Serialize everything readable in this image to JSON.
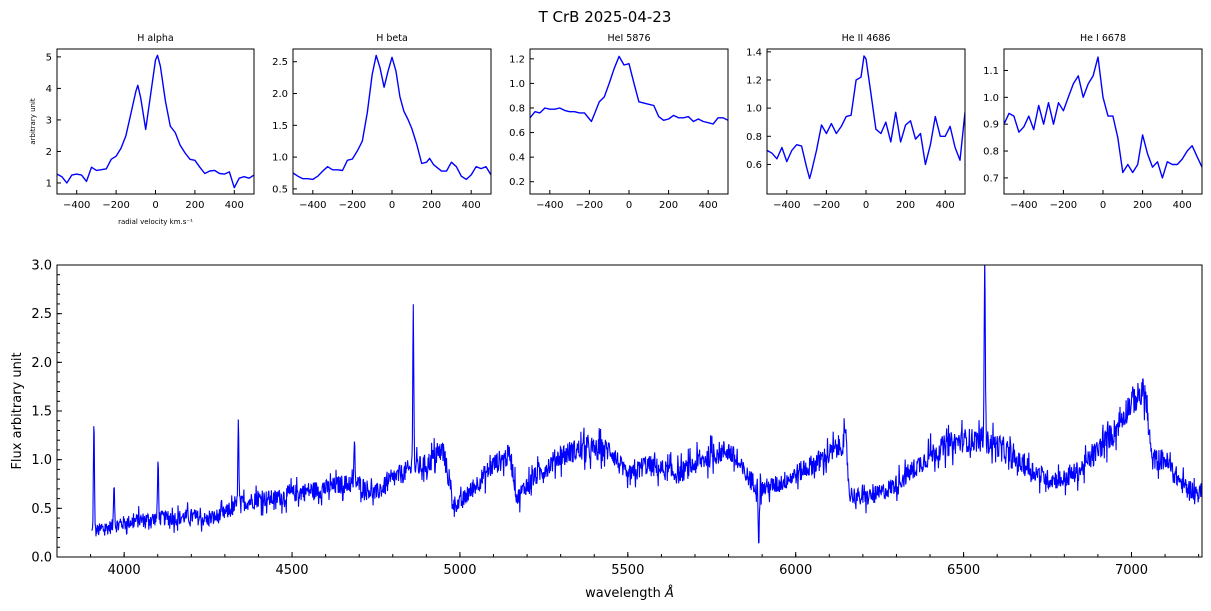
{
  "chart_data": {
    "title": "T CrB    2025-04-23",
    "panels": [
      {
        "type": "line",
        "title": "H alpha",
        "xlabel": "radial velocity km.s⁻¹",
        "ylabel": "arbitrary unit",
        "xlim": [
          -500,
          500
        ],
        "ylim": [
          0.65,
          5.25
        ],
        "xticks": [
          -400,
          -200,
          0,
          200,
          400
        ],
        "yticks": [
          1,
          2,
          3,
          4,
          5
        ],
        "ytick_labels": [
          "1",
          "2",
          "3",
          "4",
          "5"
        ],
        "x": [
          -500,
          -475,
          -450,
          -425,
          -400,
          -375,
          -350,
          -325,
          -300,
          -275,
          -250,
          -225,
          -200,
          -175,
          -150,
          -125,
          -100,
          -90,
          -75,
          -50,
          -25,
          0,
          10,
          25,
          50,
          75,
          100,
          125,
          150,
          175,
          200,
          225,
          250,
          275,
          300,
          325,
          350,
          375,
          400,
          425,
          450,
          475,
          500
        ],
        "y": [
          1.28,
          1.2,
          1.0,
          1.25,
          1.28,
          1.25,
          1.05,
          1.5,
          1.4,
          1.42,
          1.45,
          1.75,
          1.85,
          2.1,
          2.5,
          3.2,
          3.9,
          4.1,
          3.7,
          2.7,
          3.8,
          4.9,
          5.05,
          4.7,
          3.6,
          2.8,
          2.6,
          2.2,
          1.95,
          1.75,
          1.72,
          1.5,
          1.3,
          1.38,
          1.4,
          1.3,
          1.28,
          1.35,
          0.85,
          1.15,
          1.2,
          1.15,
          1.25
        ]
      },
      {
        "type": "line",
        "title": "H beta",
        "xlabel": "",
        "ylabel": "",
        "xlim": [
          -500,
          500
        ],
        "ylim": [
          0.42,
          2.7
        ],
        "xticks": [
          -400,
          -200,
          0,
          200,
          400
        ],
        "yticks": [
          0.5,
          1.0,
          1.5,
          2.0,
          2.5
        ],
        "ytick_labels": [
          "0.5",
          "1.0",
          "1.5",
          "2.0",
          "2.5"
        ],
        "x": [
          -500,
          -475,
          -450,
          -425,
          -400,
          -375,
          -350,
          -325,
          -300,
          -275,
          -250,
          -225,
          -200,
          -175,
          -150,
          -125,
          -100,
          -80,
          -60,
          -40,
          -20,
          0,
          20,
          40,
          60,
          80,
          100,
          125,
          150,
          175,
          190,
          210,
          250,
          275,
          300,
          325,
          350,
          375,
          400,
          425,
          450,
          475,
          500
        ],
        "y": [
          0.75,
          0.7,
          0.66,
          0.66,
          0.65,
          0.7,
          0.78,
          0.85,
          0.8,
          0.8,
          0.79,
          0.95,
          0.97,
          1.1,
          1.25,
          1.7,
          2.3,
          2.6,
          2.4,
          2.1,
          2.35,
          2.57,
          2.35,
          1.95,
          1.72,
          1.6,
          1.45,
          1.2,
          0.9,
          0.92,
          0.98,
          0.88,
          0.78,
          0.78,
          0.92,
          0.85,
          0.7,
          0.65,
          0.72,
          0.85,
          0.82,
          0.85,
          0.72
        ]
      },
      {
        "type": "line",
        "title": "HeI 5876",
        "xlabel": "",
        "ylabel": "",
        "xlim": [
          -500,
          500
        ],
        "ylim": [
          0.1,
          1.28
        ],
        "xticks": [
          -400,
          -200,
          0,
          200,
          400
        ],
        "yticks": [
          0.2,
          0.4,
          0.6,
          0.8,
          1.0,
          1.2
        ],
        "ytick_labels": [
          "0.2",
          "0.4",
          "0.6",
          "0.8",
          "1.0",
          "1.2"
        ],
        "x": [
          -500,
          -475,
          -450,
          -425,
          -400,
          -375,
          -350,
          -325,
          -300,
          -275,
          -250,
          -225,
          -200,
          -190,
          -175,
          -150,
          -125,
          -100,
          -75,
          -50,
          -25,
          0,
          25,
          50,
          75,
          100,
          125,
          150,
          175,
          200,
          225,
          250,
          275,
          300,
          325,
          350,
          375,
          400,
          425,
          450,
          475,
          500
        ],
        "y": [
          0.72,
          0.77,
          0.76,
          0.8,
          0.79,
          0.79,
          0.8,
          0.78,
          0.77,
          0.77,
          0.76,
          0.76,
          0.71,
          0.69,
          0.75,
          0.85,
          0.89,
          1.0,
          1.12,
          1.22,
          1.15,
          1.16,
          1.0,
          0.85,
          0.84,
          0.83,
          0.82,
          0.73,
          0.7,
          0.71,
          0.74,
          0.72,
          0.72,
          0.73,
          0.69,
          0.71,
          0.69,
          0.68,
          0.67,
          0.72,
          0.72,
          0.7
        ]
      },
      {
        "type": "line",
        "title": "He II 4686",
        "xlabel": "",
        "ylabel": "",
        "xlim": [
          -500,
          500
        ],
        "ylim": [
          0.39,
          1.42
        ],
        "xticks": [
          -400,
          -200,
          0,
          200,
          400
        ],
        "yticks": [
          0.6,
          0.8,
          1.0,
          1.2,
          1.4
        ],
        "ytick_labels": [
          "0.6",
          "0.8",
          "1.0",
          "1.2",
          "1.4"
        ],
        "x": [
          -500,
          -475,
          -450,
          -425,
          -400,
          -375,
          -350,
          -325,
          -300,
          -285,
          -275,
          -250,
          -225,
          -200,
          -175,
          -150,
          -125,
          -100,
          -75,
          -50,
          -25,
          -10,
          0,
          25,
          50,
          75,
          100,
          125,
          150,
          175,
          200,
          225,
          250,
          275,
          300,
          325,
          350,
          375,
          400,
          425,
          450,
          475,
          500
        ],
        "y": [
          0.7,
          0.68,
          0.64,
          0.72,
          0.62,
          0.7,
          0.74,
          0.73,
          0.58,
          0.5,
          0.55,
          0.7,
          0.88,
          0.82,
          0.89,
          0.82,
          0.87,
          0.94,
          0.95,
          1.2,
          1.22,
          1.37,
          1.35,
          1.1,
          0.85,
          0.82,
          0.9,
          0.76,
          0.97,
          0.76,
          0.88,
          0.91,
          0.78,
          0.82,
          0.6,
          0.74,
          0.94,
          0.8,
          0.8,
          0.87,
          0.72,
          0.63,
          0.97
        ]
      },
      {
        "type": "line",
        "title": "He I 6678",
        "xlabel": "",
        "ylabel": "",
        "xlim": [
          -500,
          500
        ],
        "ylim": [
          0.64,
          1.18
        ],
        "xticks": [
          -400,
          -200,
          0,
          200,
          400
        ],
        "yticks": [
          0.7,
          0.8,
          0.9,
          1.0,
          1.1
        ],
        "ytick_labels": [
          "0.7",
          "0.8",
          "0.9",
          "1.0",
          "1.1"
        ],
        "x": [
          -500,
          -475,
          -450,
          -425,
          -400,
          -375,
          -350,
          -325,
          -300,
          -275,
          -250,
          -225,
          -200,
          -175,
          -150,
          -125,
          -100,
          -75,
          -50,
          -25,
          0,
          25,
          50,
          75,
          100,
          125,
          150,
          175,
          200,
          225,
          250,
          275,
          300,
          325,
          350,
          375,
          400,
          425,
          450,
          475,
          500
        ],
        "y": [
          0.9,
          0.94,
          0.93,
          0.87,
          0.89,
          0.93,
          0.88,
          0.97,
          0.9,
          0.98,
          0.9,
          0.98,
          0.95,
          1.0,
          1.05,
          1.08,
          1.0,
          1.05,
          1.08,
          1.15,
          1.0,
          0.93,
          0.93,
          0.85,
          0.72,
          0.75,
          0.72,
          0.75,
          0.86,
          0.79,
          0.74,
          0.76,
          0.7,
          0.76,
          0.75,
          0.75,
          0.77,
          0.8,
          0.82,
          0.78,
          0.74
        ]
      }
    ],
    "main": {
      "type": "line",
      "xlabel": "wavelength",
      "xlabel_unit": "Å",
      "ylabel": "Flux  arbitrary unit",
      "xlim": [
        3800,
        7210
      ],
      "ylim": [
        0,
        3
      ],
      "xticks": [
        4000,
        4500,
        5000,
        5500,
        6000,
        6500,
        7000
      ],
      "yticks": [
        0.0,
        0.5,
        1.0,
        1.5,
        2.0,
        2.5,
        3.0
      ],
      "ytick_labels": [
        "0.0",
        "0.5",
        "1.0",
        "1.5",
        "2.0",
        "2.5",
        "3.0"
      ],
      "continuum_x": [
        3900,
        3950,
        4000,
        4050,
        4100,
        4150,
        4200,
        4250,
        4300,
        4350,
        4400,
        4450,
        4500,
        4550,
        4600,
        4650,
        4700,
        4750,
        4800,
        4850,
        4900,
        4950,
        4980,
        5000,
        5050,
        5100,
        5150,
        5170,
        5200,
        5250,
        5300,
        5350,
        5400,
        5450,
        5500,
        5550,
        5600,
        5650,
        5700,
        5750,
        5800,
        5850,
        5880,
        5900,
        5950,
        6000,
        6050,
        6100,
        6150,
        6160,
        6200,
        6250,
        6300,
        6350,
        6400,
        6450,
        6500,
        6550,
        6600,
        6650,
        6700,
        6750,
        6800,
        6850,
        6900,
        6950,
        7000,
        7040,
        7060,
        7100,
        7150,
        7200
      ],
      "continuum_y": [
        0.25,
        0.3,
        0.35,
        0.38,
        0.4,
        0.4,
        0.42,
        0.38,
        0.45,
        0.55,
        0.6,
        0.6,
        0.65,
        0.68,
        0.7,
        0.75,
        0.75,
        0.65,
        0.8,
        0.9,
        0.95,
        1.1,
        0.55,
        0.55,
        0.75,
        0.95,
        1.05,
        0.6,
        0.75,
        0.9,
        1.05,
        1.1,
        1.1,
        1.1,
        0.8,
        0.95,
        0.9,
        0.85,
        0.95,
        1.05,
        1.1,
        0.85,
        0.75,
        0.7,
        0.75,
        0.85,
        0.95,
        1.05,
        1.2,
        0.65,
        0.6,
        0.65,
        0.75,
        0.9,
        1.05,
        1.15,
        1.2,
        1.2,
        1.15,
        1.0,
        0.9,
        0.8,
        0.8,
        0.9,
        1.1,
        1.3,
        1.6,
        1.7,
        1.0,
        1.0,
        0.75,
        0.65
      ],
      "noise_amplitude": 0.14,
      "lines": [
        {
          "wavelength": 3910,
          "peak": 1.4
        },
        {
          "wavelength": 3970,
          "peak": 0.75
        },
        {
          "wavelength": 4101,
          "peak": 1.0
        },
        {
          "wavelength": 4340,
          "peak": 1.42
        },
        {
          "wavelength": 4686,
          "peak": 1.2
        },
        {
          "wavelength": 4861,
          "peak": 2.6
        },
        {
          "wavelength": 5890,
          "peak": 0.1
        },
        {
          "wavelength": 6563,
          "peak": 3.1
        }
      ]
    },
    "line_color": "#0000ff"
  }
}
